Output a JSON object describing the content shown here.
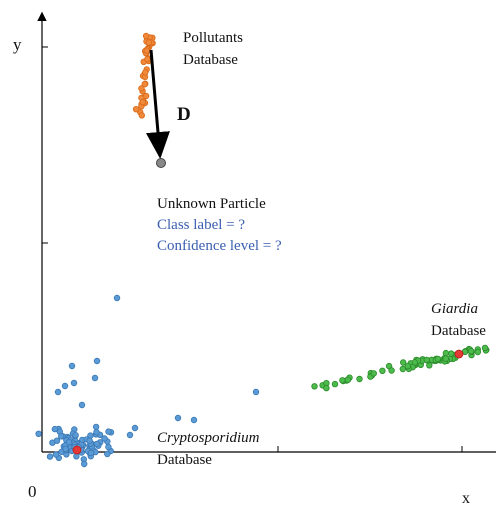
{
  "axes": {
    "y_label": "y",
    "x_label": "x",
    "origin": "0"
  },
  "pollutants": {
    "name": "Pollutants",
    "label": "Database"
  },
  "distance": "D",
  "unknown": {
    "title": "Unknown Particle",
    "class_label": "Class label = ?",
    "confidence": "Confidence level = ?"
  },
  "giardia": {
    "name": "Giardia",
    "label": "Database"
  },
  "cryptosporidium": {
    "name": "Cryptosporidium",
    "label": "Database"
  }
}
